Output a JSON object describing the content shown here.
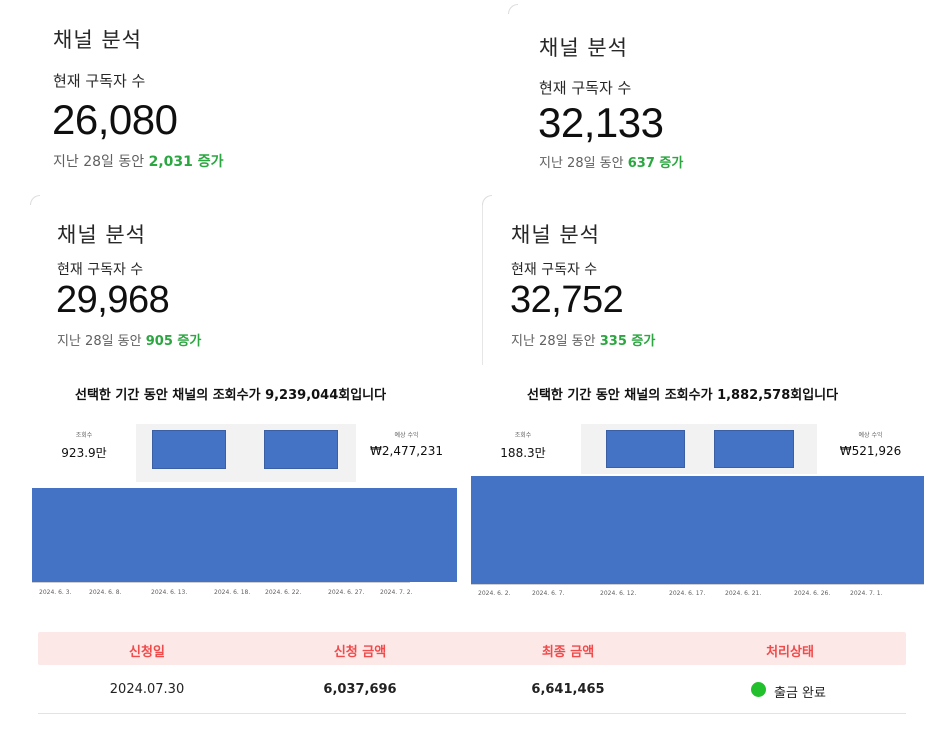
{
  "cards": [
    {
      "title": "채널 분석",
      "label": "현재 구독자 수",
      "count": "26,080",
      "delta_prefix": "지난 28일 동안 ",
      "delta_value": "2,031 증가"
    },
    {
      "title": "채널 분석",
      "label": "현재 구독자 수",
      "count": "32,133",
      "delta_prefix": "지난 28일 동안 ",
      "delta_value": "637 증가"
    },
    {
      "title": "채널 분석",
      "label": "현재 구독자 수",
      "count": "29,968",
      "delta_prefix": "지난 28일 동안 ",
      "delta_value": "905 증가"
    },
    {
      "title": "채널 분석",
      "label": "현재 구독자 수",
      "count": "32,752",
      "delta_prefix": "지난 28일 동안 ",
      "delta_value": "335 증가"
    }
  ],
  "panels": [
    {
      "heading": "선택한 기간 동안 채널의 조회수가 9,239,044회입니다",
      "views_label": "조회수",
      "views_value": "923.9만",
      "revenue_label": "예상 수익",
      "revenue_value": "₩2,477,231",
      "dates": [
        "2024. 6. 3.",
        "2024. 6. 8.",
        "2024. 6. 13.",
        "2024. 6. 18.",
        "2024. 6. 22.",
        "2024. 6. 27.",
        "2024. 7. 2."
      ]
    },
    {
      "heading": "선택한 기간 동안 채널의 조회수가 1,882,578회입니다",
      "views_label": "조회수",
      "views_value": "188.3만",
      "revenue_label": "예상 수익",
      "revenue_value": "₩521,926",
      "dates": [
        "2024. 6. 2.",
        "2024. 6. 7.",
        "2024. 6. 12.",
        "2024. 6. 17.",
        "2024. 6. 21.",
        "2024. 6. 26.",
        "2024. 7. 1."
      ]
    }
  ],
  "payout": {
    "headers": [
      "신청일",
      "신청 금액",
      "최종 금액",
      "처리상태"
    ],
    "row": {
      "date": "2024.07.30",
      "requested": "6,037,696",
      "final": "6,641,465",
      "status": "출금 완료"
    },
    "status_color": "#22c02d"
  },
  "colors": {
    "accent_green": "#2ba640",
    "bar_blue": "#4472c4",
    "header_red": "#f04a4a"
  }
}
